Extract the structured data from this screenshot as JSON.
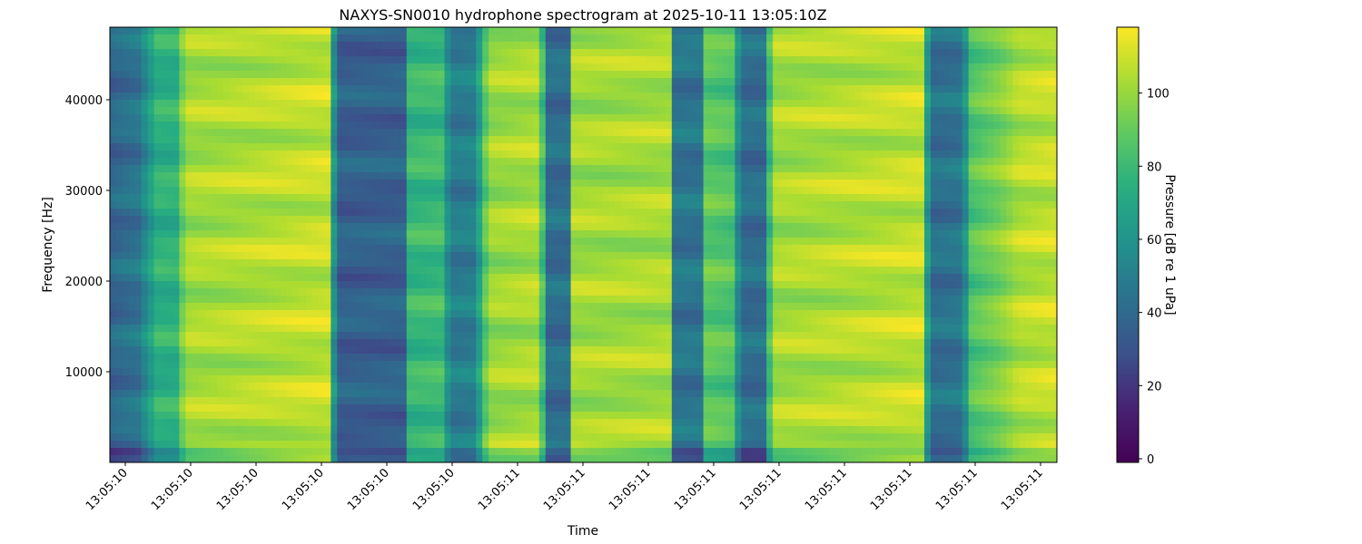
{
  "chart_data": {
    "type": "heatmap",
    "title": "NAXYS-SN0010 hydrophone spectrogram at 2025-10-11 13:05:10Z",
    "xlabel": "Time",
    "ylabel": "Frequency [Hz]",
    "colorbar_label": "Pressure [dB re 1 uPa]",
    "colormap": "viridis",
    "ylim": [
      0,
      48000
    ],
    "clim": [
      -1,
      118
    ],
    "y_ticks": [
      10000,
      20000,
      30000,
      40000
    ],
    "colorbar_ticks": [
      0,
      20,
      40,
      60,
      80,
      100
    ],
    "x_tick_labels": [
      "13:05:10",
      "13:05:10",
      "13:05:10",
      "13:05:10",
      "13:05:10",
      "13:05:10",
      "13:05:11",
      "13:05:11",
      "13:05:11",
      "13:05:11",
      "13:05:11",
      "13:05:11",
      "13:05:11",
      "13:05:11",
      "13:05:11"
    ],
    "time_profile": [
      {
        "t": 0.0,
        "db": 38
      },
      {
        "t": 0.03,
        "db": 45
      },
      {
        "t": 0.05,
        "db": 75
      },
      {
        "t": 0.07,
        "db": 75
      },
      {
        "t": 0.08,
        "db": 102
      },
      {
        "t": 0.23,
        "db": 108
      },
      {
        "t": 0.24,
        "db": 35
      },
      {
        "t": 0.31,
        "db": 36
      },
      {
        "t": 0.315,
        "db": 78
      },
      {
        "t": 0.35,
        "db": 80
      },
      {
        "t": 0.36,
        "db": 48
      },
      {
        "t": 0.385,
        "db": 50
      },
      {
        "t": 0.4,
        "db": 100
      },
      {
        "t": 0.455,
        "db": 104
      },
      {
        "t": 0.46,
        "db": 42
      },
      {
        "t": 0.485,
        "db": 42
      },
      {
        "t": 0.49,
        "db": 102
      },
      {
        "t": 0.59,
        "db": 103
      },
      {
        "t": 0.595,
        "db": 45
      },
      {
        "t": 0.625,
        "db": 45
      },
      {
        "t": 0.63,
        "db": 88
      },
      {
        "t": 0.66,
        "db": 85
      },
      {
        "t": 0.665,
        "db": 42
      },
      {
        "t": 0.69,
        "db": 42
      },
      {
        "t": 0.7,
        "db": 102
      },
      {
        "t": 0.86,
        "db": 108
      },
      {
        "t": 0.865,
        "db": 42
      },
      {
        "t": 0.9,
        "db": 45
      },
      {
        "t": 0.91,
        "db": 85
      },
      {
        "t": 0.94,
        "db": 95
      },
      {
        "t": 0.96,
        "db": 105
      },
      {
        "t": 1.0,
        "db": 108
      }
    ]
  }
}
